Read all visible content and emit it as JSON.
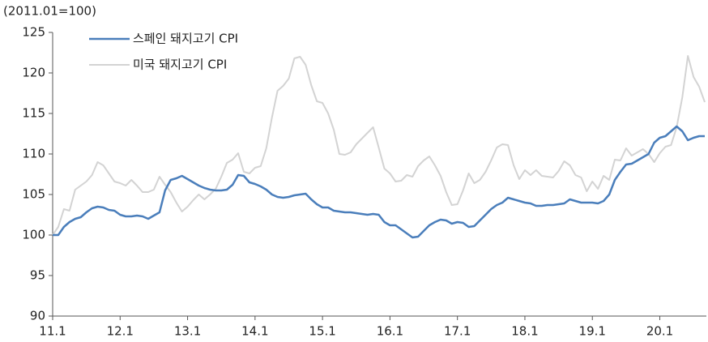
{
  "chart_data": {
    "type": "line",
    "y_axis_label": "(2011.01=100)",
    "categories": [
      "11.1",
      null,
      null,
      null,
      null,
      null,
      null,
      null,
      null,
      null,
      null,
      null,
      "12.1",
      null,
      null,
      null,
      null,
      null,
      null,
      null,
      null,
      null,
      null,
      null,
      "13.1",
      null,
      null,
      null,
      null,
      null,
      null,
      null,
      null,
      null,
      null,
      null,
      "14.1",
      null,
      null,
      null,
      null,
      null,
      null,
      null,
      null,
      null,
      null,
      null,
      "15.1",
      null,
      null,
      null,
      null,
      null,
      null,
      null,
      null,
      null,
      null,
      null,
      "16.1",
      null,
      null,
      null,
      null,
      null,
      null,
      null,
      null,
      null,
      null,
      null,
      "17.1",
      null,
      null,
      null,
      null,
      null,
      null,
      null,
      null,
      null,
      null,
      null,
      "18.1",
      null,
      null,
      null,
      null,
      null,
      null,
      null,
      null,
      null,
      null,
      null,
      "19.1",
      null,
      null,
      null,
      null,
      null,
      null,
      null,
      null,
      null,
      null,
      null,
      "20.1",
      null,
      null,
      null,
      null,
      null,
      null,
      null,
      null
    ],
    "series": [
      {
        "name": "스페인 돼지고기 CPI",
        "color": "#4a7ebb",
        "values": [
          100,
          100,
          101,
          101.6,
          102,
          102.2,
          102.8,
          103.3,
          103.5,
          103.4,
          103.1,
          103.0,
          102.5,
          102.3,
          102.3,
          102.4,
          102.3,
          102.0,
          102.4,
          102.8,
          105.5,
          106.8,
          107.0,
          107.3,
          106.9,
          106.5,
          106.1,
          105.8,
          105.6,
          105.5,
          105.5,
          105.6,
          106.2,
          107.4,
          107.3,
          106.5,
          106.3,
          106.0,
          105.6,
          105.0,
          104.7,
          104.6,
          104.7,
          104.9,
          105.0,
          105.1,
          104.4,
          103.8,
          103.4,
          103.4,
          103.0,
          102.9,
          102.8,
          102.8,
          102.7,
          102.6,
          102.5,
          102.6,
          102.5,
          101.6,
          101.2,
          101.2,
          100.7,
          100.2,
          99.7,
          99.8,
          100.5,
          101.2,
          101.6,
          101.9,
          101.8,
          101.4,
          101.6,
          101.5,
          101.0,
          101.1,
          101.8,
          102.5,
          103.2,
          103.7,
          104.0,
          104.6,
          104.4,
          104.2,
          104.0,
          103.9,
          103.6,
          103.6,
          103.7,
          103.7,
          103.8,
          103.9,
          104.4,
          104.2,
          104.0,
          104.0,
          104.0,
          103.9,
          104.2,
          105.0,
          106.8,
          107.8,
          108.7,
          108.8,
          109.2,
          109.6,
          110.0,
          111.4,
          112.0,
          112.2,
          112.8,
          113.4,
          112.8,
          111.7,
          112.0,
          112.2,
          112.2
        ]
      },
      {
        "name": "미국 돼지고기 CPI",
        "color": "#d3d3d3",
        "values": [
          100,
          101,
          103.2,
          103.0,
          105.6,
          106.1,
          106.6,
          107.4,
          109.0,
          108.6,
          107.6,
          106.6,
          106.4,
          106.1,
          106.8,
          106.1,
          105.3,
          105.3,
          105.6,
          107.2,
          106.2,
          105.3,
          104.0,
          102.9,
          103.5,
          104.3,
          105.0,
          104.4,
          105.0,
          105.7,
          107.2,
          108.9,
          109.3,
          110.1,
          107.8,
          107.6,
          108.3,
          108.5,
          110.7,
          114.5,
          117.8,
          118.4,
          119.3,
          121.8,
          122.0,
          121.0,
          118.5,
          116.5,
          116.3,
          115.0,
          113.0,
          110.0,
          109.9,
          110.2,
          111.2,
          111.9,
          112.6,
          113.3,
          110.8,
          108.2,
          107.6,
          106.6,
          106.7,
          107.4,
          107.2,
          108.5,
          109.2,
          109.7,
          108.6,
          107.3,
          105.3,
          103.7,
          103.8,
          105.5,
          107.6,
          106.4,
          106.8,
          107.8,
          109.2,
          110.8,
          111.2,
          111.1,
          108.6,
          106.9,
          108.0,
          107.4,
          108.0,
          107.3,
          107.2,
          107.1,
          107.9,
          109.1,
          108.6,
          107.4,
          107.1,
          105.4,
          106.6,
          105.7,
          107.3,
          106.8,
          109.3,
          109.2,
          110.7,
          109.8,
          110.2,
          110.6,
          110.0,
          109.0,
          110.1,
          110.9,
          111.1,
          113.3,
          117.0,
          122.1,
          119.5,
          118.3,
          116.4
        ]
      }
    ],
    "ylim": [
      90,
      125
    ],
    "yticks": [
      90,
      95,
      100,
      105,
      110,
      115,
      120,
      125
    ],
    "grid": false,
    "legend": "top-left"
  }
}
